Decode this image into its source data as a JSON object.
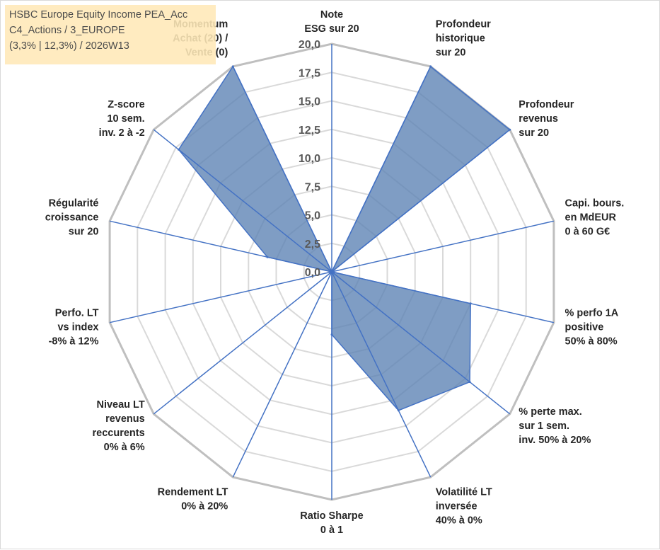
{
  "chart_data": {
    "type": "radar",
    "title_lines": [
      "HSBC Europe Equity Income PEA_Acc",
      "C4_Actions / 3_EUROPE",
      "(3,3% | 12,3%) / 2026W13"
    ],
    "rlim": [
      0,
      20
    ],
    "tick_values": [
      0,
      2.5,
      5,
      7.5,
      10,
      12.5,
      15,
      17.5,
      20
    ],
    "tick_labels": [
      "0,0",
      "2,5",
      "5,0",
      "7,5",
      "10,0",
      "12,5",
      "15,0",
      "17,5",
      "20,0"
    ],
    "axes": [
      {
        "label": [
          "Note",
          "ESG sur 20"
        ],
        "value": 0
      },
      {
        "label": [
          "Profondeur",
          "historique",
          "sur 20"
        ],
        "value": 20
      },
      {
        "label": [
          "Profondeur",
          "revenus",
          "sur 20"
        ],
        "value": 20
      },
      {
        "label": [
          "Capi. bours.",
          "en MdEUR",
          "0 à 60 G€"
        ],
        "value": 0
      },
      {
        "label": [
          "% perfo 1A",
          "positive",
          "50% à 80%"
        ],
        "value": 12.5
      },
      {
        "label": [
          "% perte max.",
          "sur 1 sem.",
          "inv. 50% à 20%"
        ],
        "value": 15.5
      },
      {
        "label": [
          "Volatilité LT",
          "inversée",
          "40% à 0%"
        ],
        "value": 13.5
      },
      {
        "label": [
          "Ratio Sharpe",
          "0 à 1"
        ],
        "value": 5.5
      },
      {
        "label": [
          "Rendement LT",
          "0% à 20%"
        ],
        "value": 0
      },
      {
        "label": [
          "Niveau LT",
          "revenus",
          "reccurents",
          "0% à 6%"
        ],
        "value": 0
      },
      {
        "label": [
          "Perfo. LT",
          "vs index",
          "-8% à 12%"
        ],
        "value": 0
      },
      {
        "label": [
          "Régularité",
          "croissance",
          "sur 20"
        ],
        "value": 5.8
      },
      {
        "label": [
          "Z-score",
          "10 sem.",
          "inv. 2 à -2"
        ],
        "value": 17.2
      },
      {
        "label": [
          "Momentum",
          "Achat (20) /",
          "Vente (0)"
        ],
        "value": 20
      }
    ],
    "series": [
      {
        "values": [
          0,
          20,
          20,
          0,
          12.5,
          15.5,
          13.5,
          5.5,
          0,
          0,
          0,
          5.8,
          17.2,
          20
        ]
      }
    ],
    "colors": {
      "fill": "#5b82b4",
      "stroke": "#4472c4",
      "spoke": "#4472c4",
      "grid_outer": "#bfbfbf",
      "grid_inner": "#d9d9d9",
      "title_bg": "#ffe9b8"
    }
  }
}
